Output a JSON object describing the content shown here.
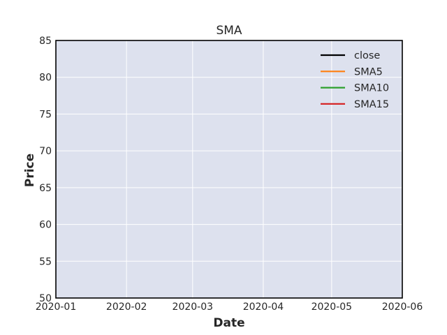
{
  "chart_data": {
    "type": "line",
    "title": "SMA",
    "xlabel": "Date",
    "ylabel": "Price",
    "x_ticks": [
      "2020-01",
      "2020-02",
      "2020-03",
      "2020-04",
      "2020-05",
      "2020-06"
    ],
    "x_range": [
      "2020-01-01",
      "2020-06-01"
    ],
    "ylim": [
      50,
      85
    ],
    "y_ticks": [
      50,
      55,
      60,
      65,
      70,
      75,
      80,
      85
    ],
    "grid": true,
    "legend_position": "top-right",
    "series": [
      {
        "name": "close",
        "color": "#000000",
        "values": []
      },
      {
        "name": "SMA5",
        "color": "#ff7f0e",
        "values": []
      },
      {
        "name": "SMA10",
        "color": "#2ca02c",
        "values": []
      },
      {
        "name": "SMA15",
        "color": "#d62728",
        "values": []
      }
    ]
  },
  "colors": {
    "plot_background": "#dde1ee",
    "grid": "#ffffff",
    "frame": "#000000"
  }
}
